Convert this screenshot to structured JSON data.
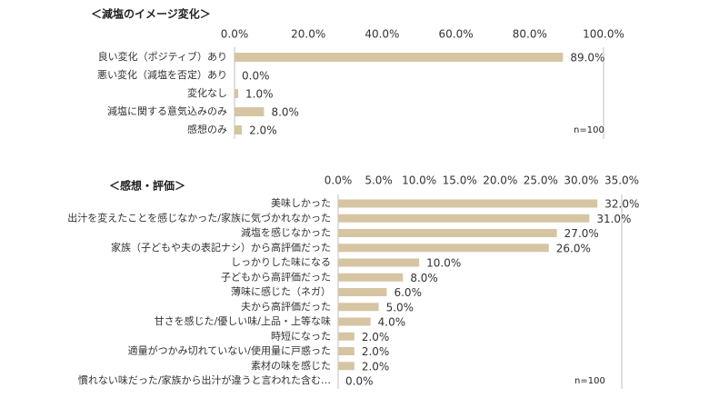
{
  "chart_data": [
    {
      "type": "hbar",
      "title": "＜減塩のイメージ変化＞",
      "categories": [
        "良い変化（ポジティブ）あり",
        "悪い変化（減塩を否定）あり",
        "変化なし",
        "減塩に関する意気込みのみ",
        "感想のみ"
      ],
      "values": [
        89,
        0,
        1,
        8,
        2
      ],
      "value_labels": [
        "89.0%",
        "0.0%",
        "1.0%",
        "8.0%",
        "2.0%"
      ],
      "color": "#d6c5a2",
      "xlim": [
        0,
        100
      ],
      "xticks": [
        {
          "value": 0,
          "label": "0.0%"
        },
        {
          "value": 20,
          "label": "20.0%"
        },
        {
          "value": 40,
          "label": "40.0%"
        },
        {
          "value": 60,
          "label": "60.0%"
        },
        {
          "value": 80,
          "label": "80.0%"
        },
        {
          "value": 100,
          "label": "100.0%"
        }
      ],
      "annotation": "n=100"
    },
    {
      "type": "hbar",
      "title": "＜感想・評価＞",
      "categories": [
        "美味しかった",
        "出汁を変えたことを感じなかった/家族に気づかれなかった",
        "減塩を感じなかった",
        "家族（子どもや夫の表記ナシ）から高評価だった",
        "しっかりした味になる",
        "子どもから高評価だった",
        "薄味に感じた（ネガ）",
        "夫から高評価だった",
        "甘さを感じた/優しい味/上品・上等な味",
        "時短になった",
        "適量がつかみ切れていない/使用量に戸惑った",
        "素材の味を感じた",
        "慣れない味だった/家族から出汁が違うと言われた含む…"
      ],
      "values": [
        32,
        31,
        27,
        26,
        10,
        8,
        6,
        5,
        4,
        2,
        2,
        2,
        0
      ],
      "value_labels": [
        "32.0%",
        "31.0%",
        "27.0%",
        "26.0%",
        "10.0%",
        "8.0%",
        "6.0%",
        "5.0%",
        "4.0%",
        "2.0%",
        "2.0%",
        "2.0%",
        "0.0%"
      ],
      "color": "#d6c5a2",
      "xlim": [
        0,
        35
      ],
      "xticks": [
        {
          "value": 0,
          "label": "0.0%"
        },
        {
          "value": 5,
          "label": "5.0%"
        },
        {
          "value": 10,
          "label": "10.0%"
        },
        {
          "value": 15,
          "label": "15.0%"
        },
        {
          "value": 20,
          "label": "20.0%"
        },
        {
          "value": 25,
          "label": "25.0%"
        },
        {
          "value": 30,
          "label": "30.0%"
        },
        {
          "value": 35,
          "label": "35.0%"
        }
      ],
      "annotation": "n=100"
    }
  ]
}
